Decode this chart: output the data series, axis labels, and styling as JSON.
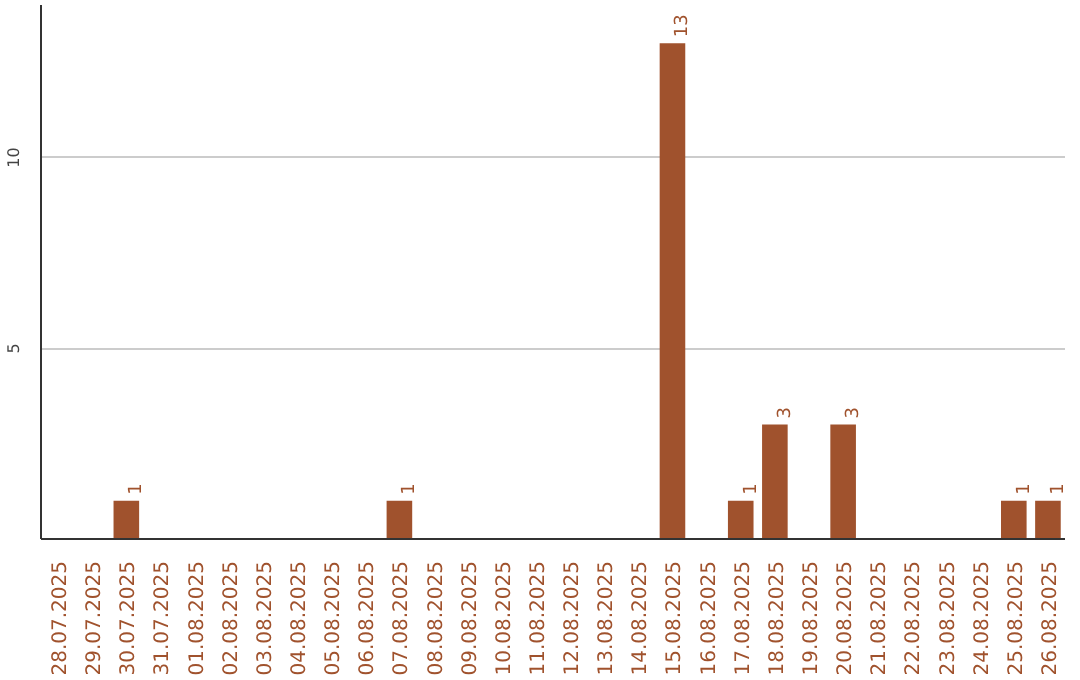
{
  "chart_data": {
    "type": "bar",
    "categories": [
      "28.07.2025",
      "29.07.2025",
      "30.07.2025",
      "31.07.2025",
      "01.08.2025",
      "02.08.2025",
      "03.08.2025",
      "04.08.2025",
      "05.08.2025",
      "06.08.2025",
      "07.08.2025",
      "08.08.2025",
      "09.08.2025",
      "10.08.2025",
      "11.08.2025",
      "12.08.2025",
      "13.08.2025",
      "14.08.2025",
      "15.08.2025",
      "16.08.2025",
      "17.08.2025",
      "18.08.2025",
      "19.08.2025",
      "20.08.2025",
      "21.08.2025",
      "22.08.2025",
      "23.08.2025",
      "24.08.2025",
      "25.08.2025",
      "26.08.2025"
    ],
    "values": [
      0,
      0,
      1,
      0,
      0,
      0,
      0,
      0,
      0,
      0,
      1,
      0,
      0,
      0,
      0,
      0,
      0,
      0,
      13,
      0,
      1,
      3,
      0,
      3,
      0,
      0,
      0,
      0,
      1,
      1
    ],
    "value_labels": [
      null,
      null,
      "1",
      null,
      null,
      null,
      null,
      null,
      null,
      null,
      "1",
      null,
      null,
      null,
      null,
      null,
      null,
      null,
      "13",
      null,
      "1",
      "3",
      null,
      "3",
      null,
      null,
      null,
      null,
      "1",
      "1"
    ],
    "color": "#a0522d",
    "ylim": [
      0,
      14
    ],
    "yticks": [
      5,
      10
    ],
    "grid": "y"
  }
}
